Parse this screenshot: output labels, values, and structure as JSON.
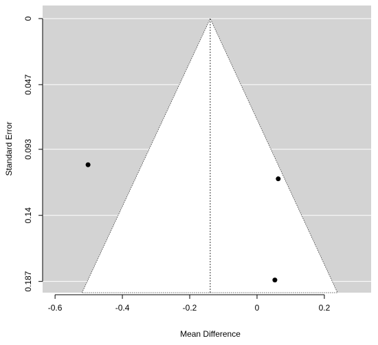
{
  "chart_data": {
    "type": "funnel",
    "x_label": "Mean Difference",
    "y_label": "Standard Error",
    "x": [
      -0.502,
      0.063,
      0.053
    ],
    "values": [
      0.104,
      0.114,
      0.186
    ],
    "color": "#000000",
    "funnel": {
      "x": [
        -0.52,
        -0.139,
        0.239
      ],
      "y": [
        0.195,
        0,
        0.195
      ]
    },
    "reference_line": -0.139,
    "xlim": [
      -0.637,
      0.339
    ],
    "ylim": [
      0.195,
      -0.0093
    ],
    "y_reversed": true,
    "xticks": [
      -0.6,
      -0.4,
      -0.2,
      0,
      0.2
    ],
    "yticks": [
      0,
      0.047,
      0.093,
      0.14,
      0.187
    ],
    "grid": true,
    "background": "#d3d3d3"
  }
}
